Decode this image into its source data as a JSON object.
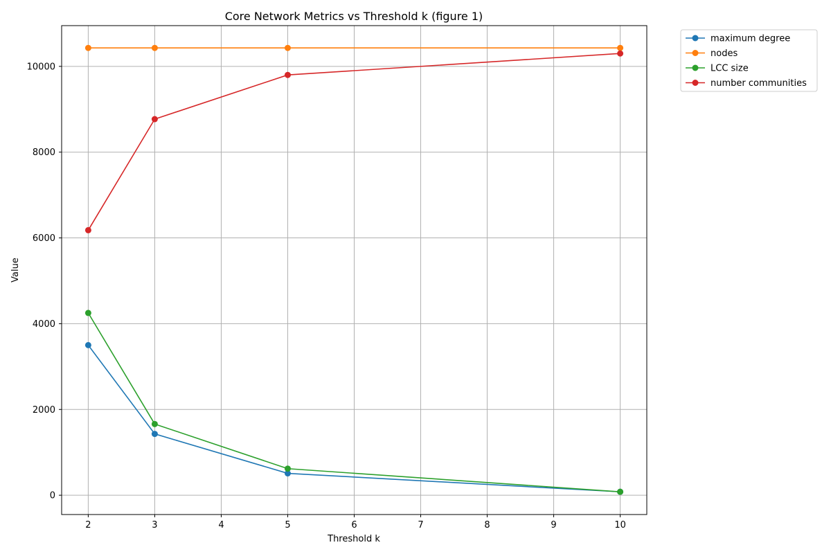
{
  "chart_data": {
    "type": "line",
    "title": "Core Network Metrics vs Threshold k (figure 1)",
    "xlabel": "Threshold k",
    "ylabel": "Value",
    "xlim": [
      1.6,
      10.4
    ],
    "ylim": [
      -450,
      10950
    ],
    "xticks": [
      2,
      3,
      4,
      5,
      6,
      7,
      8,
      9,
      10
    ],
    "yticks": [
      0,
      2000,
      4000,
      6000,
      8000,
      10000
    ],
    "grid": true,
    "legend_position": "outside-top-right",
    "x": [
      2,
      3,
      5,
      10
    ],
    "series": [
      {
        "name": "maximum degree",
        "color": "#1f77b4",
        "values": [
          3500,
          1430,
          510,
          80
        ]
      },
      {
        "name": "nodes",
        "color": "#ff7f0e",
        "values": [
          10430,
          10430,
          10430,
          10430
        ]
      },
      {
        "name": "LCC size",
        "color": "#2ca02c",
        "values": [
          4250,
          1660,
          620,
          80
        ]
      },
      {
        "name": "number communities",
        "color": "#d62728",
        "values": [
          6180,
          8770,
          9800,
          10300
        ]
      }
    ]
  }
}
